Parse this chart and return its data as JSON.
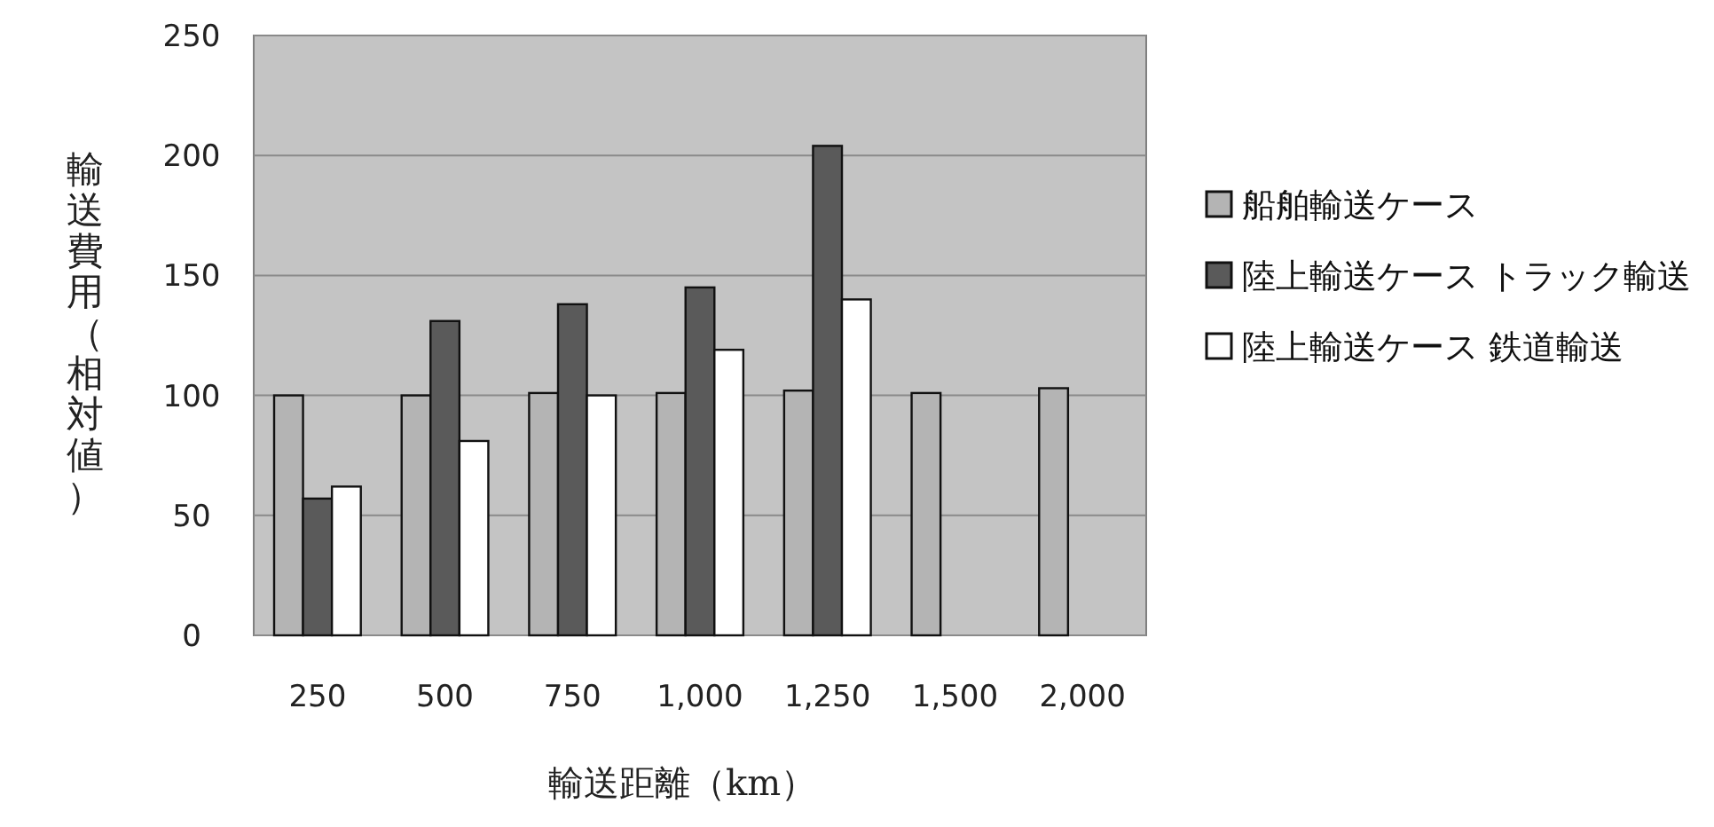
{
  "chart_data": {
    "type": "bar",
    "xlabel": "輸送距離（km）",
    "ylabel": "輸送費用（相対値）",
    "categories": [
      "250",
      "500",
      "750",
      "1,000",
      "1,250",
      "1,500",
      "2,000"
    ],
    "series": [
      {
        "name": "船舶輸送ケース",
        "color": "#b4b4b4",
        "values": [
          100,
          100,
          101,
          101,
          102,
          101,
          103
        ]
      },
      {
        "name": "陸上輸送ケース トラック輸送",
        "color": "#5a5a5a",
        "values": [
          57,
          131,
          138,
          145,
          204,
          null,
          null
        ]
      },
      {
        "name": "陸上輸送ケース 鉄道輸送",
        "color": "#ffffff",
        "values": [
          62,
          81,
          100,
          119,
          140,
          null,
          null
        ]
      }
    ],
    "ylim": [
      0,
      250
    ],
    "yticks": [
      0,
      50,
      100,
      150,
      200,
      250
    ],
    "grid": "y",
    "legend": "right"
  }
}
